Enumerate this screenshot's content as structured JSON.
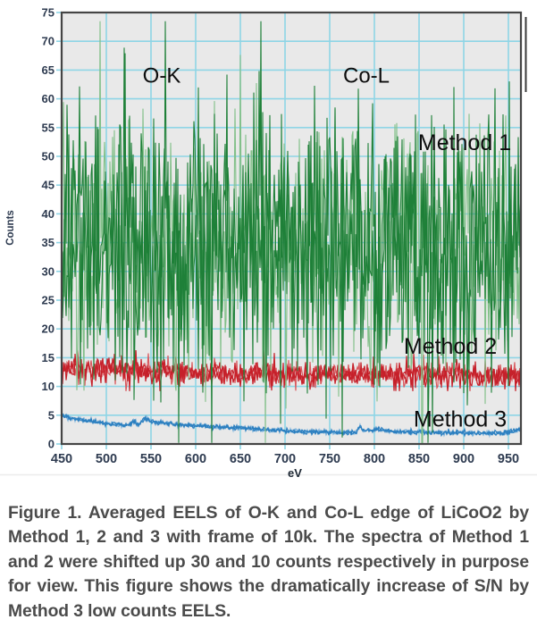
{
  "chart_data": {
    "type": "line",
    "title": "",
    "xlabel": "eV",
    "ylabel": "Counts",
    "xlim": [
      450,
      964
    ],
    "ylim": [
      0,
      75
    ],
    "x_ticks": [
      450,
      500,
      550,
      600,
      650,
      700,
      750,
      800,
      850,
      900,
      950
    ],
    "y_ticks": [
      0,
      5,
      10,
      15,
      20,
      25,
      30,
      35,
      40,
      45,
      50,
      55,
      60,
      65,
      70,
      75
    ],
    "grid": true,
    "legend_position": "inline-annotations",
    "seed": 1377,
    "draw_order": [
      1,
      2,
      0
    ],
    "series": [
      {
        "name": "Method 1",
        "color": "#1e8038",
        "color_light": "#82c089",
        "baseline": [
          [
            450,
            33.5
          ],
          [
            700,
            34.5
          ],
          [
            964,
            34
          ]
        ],
        "noise_std": 10,
        "spike_prob": 0.1,
        "spike_min": 8,
        "spike_max": 30,
        "clip": [
          0.2,
          73.5
        ],
        "passes": 3,
        "stroke_width": 1.1
      },
      {
        "name": "Method 2",
        "color": "#c6202a",
        "color_light": "#d9595e",
        "baseline": [
          [
            450,
            13.3
          ],
          [
            520,
            12.8
          ],
          [
            600,
            12.4
          ],
          [
            700,
            12.1
          ],
          [
            800,
            12.3
          ],
          [
            900,
            11.9
          ],
          [
            964,
            12.0
          ]
        ],
        "noise_std": 1.0,
        "spike_prob": 0.07,
        "spike_min": 0.8,
        "spike_max": 2.4,
        "clip": [
          9.2,
          16.3
        ],
        "passes": 3,
        "stroke_width": 1.2
      },
      {
        "name": "Method 3",
        "color": "#2b7fc0",
        "color_light": "#74afdb",
        "baseline": [
          [
            450,
            5.0
          ],
          [
            458,
            4.6
          ],
          [
            470,
            4.2
          ],
          [
            490,
            3.8
          ],
          [
            510,
            3.4
          ],
          [
            524,
            3.2
          ],
          [
            530,
            3.9
          ],
          [
            536,
            3.3
          ],
          [
            543,
            4.5
          ],
          [
            550,
            3.9
          ],
          [
            562,
            3.7
          ],
          [
            580,
            3.4
          ],
          [
            620,
            3.0
          ],
          [
            660,
            2.7
          ],
          [
            700,
            2.3
          ],
          [
            740,
            2.1
          ],
          [
            779,
            2.0
          ],
          [
            784,
            3.1
          ],
          [
            789,
            2.3
          ],
          [
            800,
            2.5
          ],
          [
            820,
            2.2
          ],
          [
            860,
            2.0
          ],
          [
            900,
            1.9
          ],
          [
            940,
            1.9
          ],
          [
            958,
            2.3
          ],
          [
            964,
            2.5
          ]
        ],
        "noise_std": 0.2,
        "spike_prob": 0.02,
        "spike_min": 0.2,
        "spike_max": 0.5,
        "clip": [
          0.8,
          6.0
        ],
        "passes": 3,
        "stroke_width": 1.2
      }
    ],
    "annotations": [
      {
        "id": "label-o-k",
        "text": "O-K",
        "x": 562,
        "y": 64,
        "size": 24
      },
      {
        "id": "label-co-l",
        "text": "Co-L",
        "x": 791,
        "y": 64,
        "size": 24
      },
      {
        "id": "label-method-1",
        "text": "Method 1",
        "x": 901,
        "y": 52.3,
        "size": 25
      },
      {
        "id": "label-method-2",
        "text": "Method 2",
        "x": 885,
        "y": 16.9,
        "size": 25
      },
      {
        "id": "label-method-3",
        "text": "Method 3",
        "x": 896,
        "y": 4.3,
        "size": 25
      }
    ]
  },
  "caption": {
    "text": "Figure 1. Averaged EELS of O-K and Co-L edge of LiCoO2 by Method 1, 2 and 3 with frame of 10k. The spectra of Method 1 and 2 were shifted up 30 and 10 counts respectively in purpose for view. This figure shows the dramatically increase of S/N by Method 3 low counts EELS."
  },
  "colors": {
    "plot_bg": "#e9e9e9",
    "grid": "#8ed5e6",
    "border": "#454545",
    "tick_text": "#2e3b50",
    "axis_text": "#1c2733",
    "annotation_text": "#0d0d0d",
    "caption_text": "#4b4b4b",
    "margin_line": "#3a3a3a",
    "hairline": "#ececec"
  }
}
